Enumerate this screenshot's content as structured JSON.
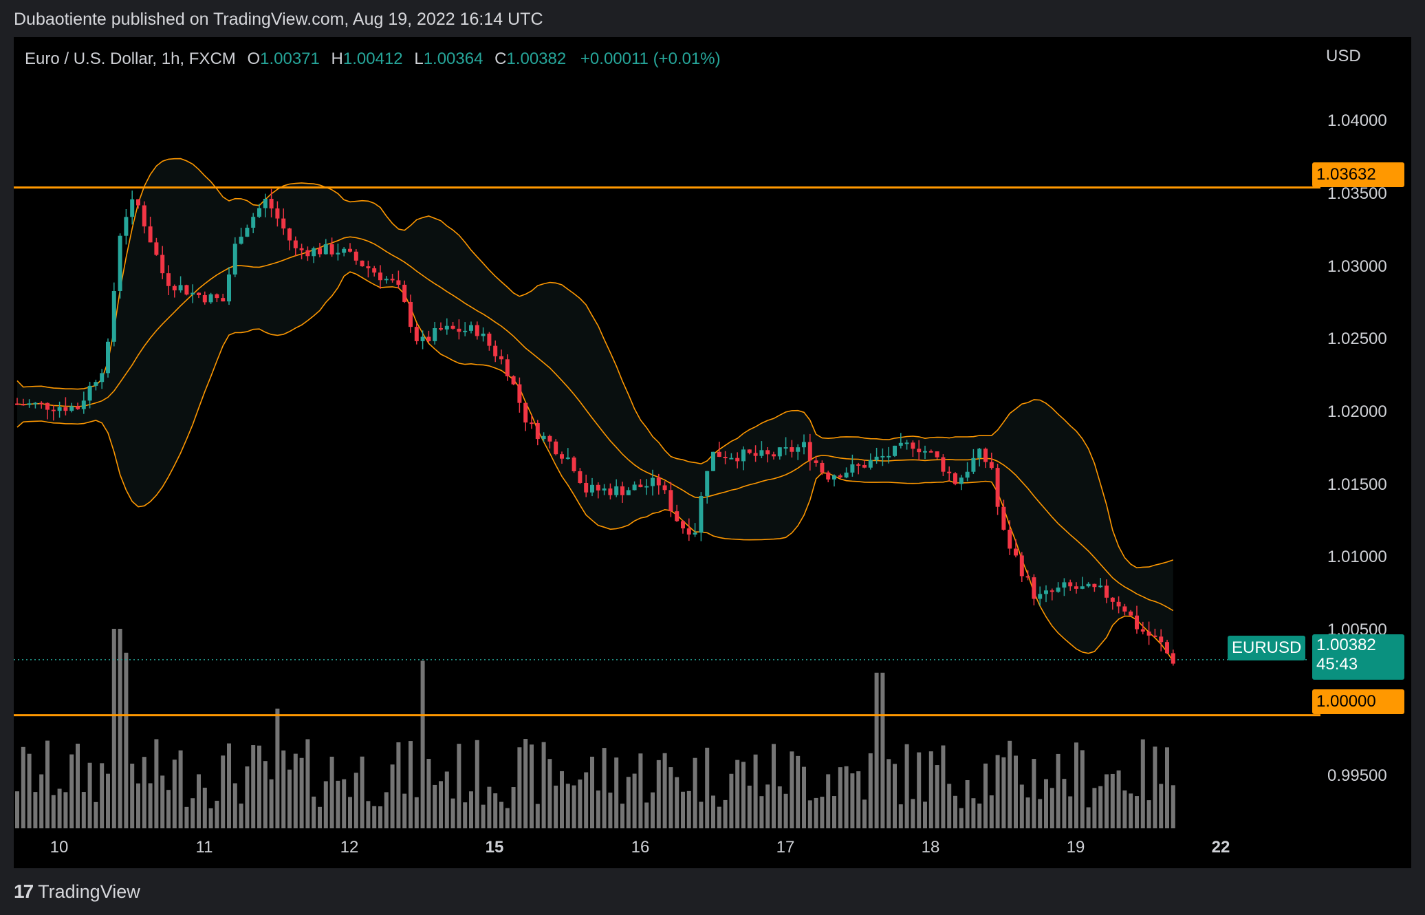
{
  "header": {
    "published_by": "Dubaotiente published on TradingView.com, Aug 19, 2022 16:14 UTC"
  },
  "legend": {
    "title": "Euro / U.S. Dollar, 1h, FXCM",
    "open_label": "O",
    "open": "1.00371",
    "high_label": "H",
    "high": "1.00412",
    "low_label": "L",
    "low": "1.00364",
    "close_label": "C",
    "close": "1.00382",
    "change": "+0.00011 (+0.01%)"
  },
  "price_axis": {
    "unit": "USD",
    "ticks": [
      "1.04000",
      "1.03500",
      "1.03000",
      "1.02500",
      "1.02000",
      "1.01500",
      "1.01000",
      "1.00500",
      "0.99500"
    ]
  },
  "time_axis": {
    "ticks": [
      {
        "label": "10",
        "bold": false
      },
      {
        "label": "11",
        "bold": false
      },
      {
        "label": "12",
        "bold": false
      },
      {
        "label": "15",
        "bold": true
      },
      {
        "label": "16",
        "bold": false
      },
      {
        "label": "17",
        "bold": false
      },
      {
        "label": "18",
        "bold": false
      },
      {
        "label": "19",
        "bold": false
      },
      {
        "label": "22",
        "bold": true
      }
    ]
  },
  "levels": [
    {
      "value": 1.03632,
      "label": "1.03632"
    },
    {
      "value": 1.0,
      "label": "1.00000"
    }
  ],
  "last_price": {
    "symbol": "EURUSD",
    "value": 1.00382,
    "label": "1.00382",
    "countdown": "45:43"
  },
  "footer": {
    "brand": "TradingView",
    "logo_glyph": "17"
  },
  "colors": {
    "up": "#26a69a",
    "down": "#f23645",
    "band": "#ff9800",
    "level": "#ff9800",
    "volume": "#8a8a8a",
    "bg": "#000000"
  },
  "chart_data": {
    "type": "candlestick",
    "symbol": "EURUSD",
    "interval": "1h",
    "indicators": [
      "Bollinger Bands",
      "Volume"
    ],
    "x_range_days": [
      9.7,
      22.2
    ],
    "ylim": [
      0.9955,
      1.0425
    ],
    "trend_points": [
      {
        "day": 9.7,
        "price": 1.0215
      },
      {
        "day": 10.25,
        "price": 1.0212
      },
      {
        "day": 10.45,
        "price": 1.0245
      },
      {
        "day": 10.55,
        "price": 1.034
      },
      {
        "day": 10.65,
        "price": 1.0355
      },
      {
        "day": 10.85,
        "price": 1.03
      },
      {
        "day": 11.05,
        "price": 1.029
      },
      {
        "day": 11.25,
        "price": 1.0285
      },
      {
        "day": 11.35,
        "price": 1.033
      },
      {
        "day": 11.55,
        "price": 1.0355
      },
      {
        "day": 11.75,
        "price": 1.032
      },
      {
        "day": 12.05,
        "price": 1.032
      },
      {
        "day": 12.3,
        "price": 1.0305
      },
      {
        "day": 12.45,
        "price": 1.0295
      },
      {
        "day": 12.6,
        "price": 1.0255
      },
      {
        "day": 12.75,
        "price": 1.0265
      },
      {
        "day": 15.0,
        "price": 1.0265
      },
      {
        "day": 15.2,
        "price": 1.024
      },
      {
        "day": 15.35,
        "price": 1.02
      },
      {
        "day": 15.65,
        "price": 1.0175
      },
      {
        "day": 15.75,
        "price": 1.0155
      },
      {
        "day": 16.0,
        "price": 1.0155
      },
      {
        "day": 16.25,
        "price": 1.016
      },
      {
        "day": 16.4,
        "price": 1.013
      },
      {
        "day": 16.5,
        "price": 1.0128
      },
      {
        "day": 16.6,
        "price": 1.018
      },
      {
        "day": 17.0,
        "price": 1.0178
      },
      {
        "day": 17.25,
        "price": 1.0185
      },
      {
        "day": 17.4,
        "price": 1.0165
      },
      {
        "day": 17.6,
        "price": 1.017
      },
      {
        "day": 17.85,
        "price": 1.018
      },
      {
        "day": 18.0,
        "price": 1.0187
      },
      {
        "day": 18.15,
        "price": 1.0178
      },
      {
        "day": 18.3,
        "price": 1.016
      },
      {
        "day": 18.45,
        "price": 1.018
      },
      {
        "day": 18.55,
        "price": 1.017
      },
      {
        "day": 18.6,
        "price": 1.013
      },
      {
        "day": 18.75,
        "price": 1.01
      },
      {
        "day": 18.85,
        "price": 1.008
      },
      {
        "day": 19.05,
        "price": 1.0088
      },
      {
        "day": 19.3,
        "price": 1.0085
      },
      {
        "day": 19.45,
        "price": 1.0075
      },
      {
        "day": 19.55,
        "price": 1.006
      },
      {
        "day": 19.7,
        "price": 1.005
      },
      {
        "day": 19.78,
        "price": 1.0038
      }
    ],
    "volume_spikes": [
      {
        "day": 10.5,
        "relative": 1.0
      },
      {
        "day": 10.55,
        "relative": 0.88
      },
      {
        "day": 12.6,
        "relative": 0.84
      },
      {
        "day": 17.75,
        "relative": 0.78
      },
      {
        "day": 11.6,
        "relative": 0.6
      }
    ],
    "price_ticks": [
      1.04,
      1.035,
      1.03,
      1.025,
      1.02,
      1.015,
      1.01,
      1.005,
      0.995
    ]
  }
}
